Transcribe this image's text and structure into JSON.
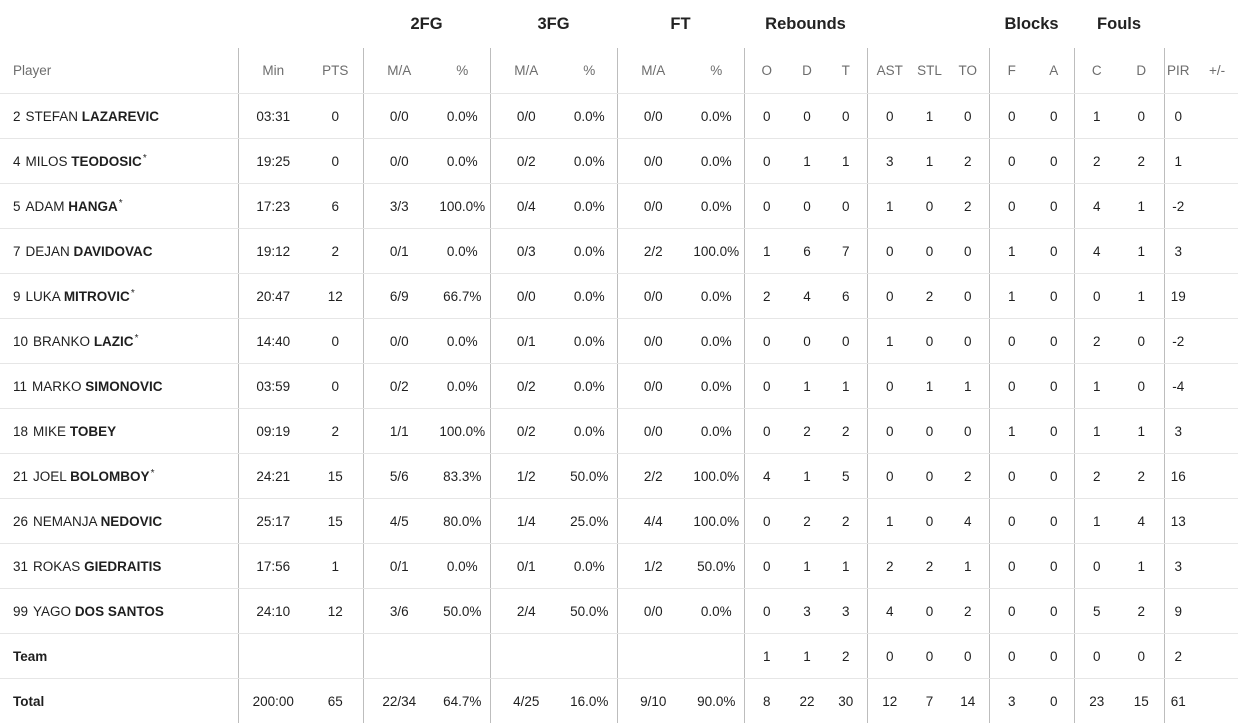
{
  "groups": {
    "fg2": "2FG",
    "fg3": "3FG",
    "ft": "FT",
    "rebounds": "Rebounds",
    "blocks": "Blocks",
    "fouls": "Fouls"
  },
  "headers": {
    "player": "Player",
    "min": "Min",
    "pts": "PTS",
    "fg2_ma": "M/A",
    "fg2_pct": "%",
    "fg3_ma": "M/A",
    "fg3_pct": "%",
    "ft_ma": "M/A",
    "ft_pct": "%",
    "reb_o": "O",
    "reb_d": "D",
    "reb_t": "T",
    "ast": "AST",
    "stl": "STL",
    "to": "TO",
    "blk_f": "F",
    "blk_a": "A",
    "foul_c": "C",
    "foul_d": "D",
    "pir": "PIR",
    "pm": "+/-"
  },
  "players": [
    {
      "number": "2",
      "first": "STEFAN",
      "last": "LAZAREVIC",
      "starter": "",
      "min": "03:31",
      "pts": "0",
      "fg2_ma": "0/0",
      "fg2_pct": "0.0%",
      "fg3_ma": "0/0",
      "fg3_pct": "0.0%",
      "ft_ma": "0/0",
      "ft_pct": "0.0%",
      "reb_o": "0",
      "reb_d": "0",
      "reb_t": "0",
      "ast": "0",
      "stl": "1",
      "to": "0",
      "blk_f": "0",
      "blk_a": "0",
      "foul_c": "1",
      "foul_d": "0",
      "pir": "0",
      "pm": ""
    },
    {
      "number": "4",
      "first": "MILOS",
      "last": "TEODOSIC",
      "starter": "*",
      "min": "19:25",
      "pts": "0",
      "fg2_ma": "0/0",
      "fg2_pct": "0.0%",
      "fg3_ma": "0/2",
      "fg3_pct": "0.0%",
      "ft_ma": "0/0",
      "ft_pct": "0.0%",
      "reb_o": "0",
      "reb_d": "1",
      "reb_t": "1",
      "ast": "3",
      "stl": "1",
      "to": "2",
      "blk_f": "0",
      "blk_a": "0",
      "foul_c": "2",
      "foul_d": "2",
      "pir": "1",
      "pm": ""
    },
    {
      "number": "5",
      "first": "ADAM",
      "last": "HANGA",
      "starter": "*",
      "min": "17:23",
      "pts": "6",
      "fg2_ma": "3/3",
      "fg2_pct": "100.0%",
      "fg3_ma": "0/4",
      "fg3_pct": "0.0%",
      "ft_ma": "0/0",
      "ft_pct": "0.0%",
      "reb_o": "0",
      "reb_d": "0",
      "reb_t": "0",
      "ast": "1",
      "stl": "0",
      "to": "2",
      "blk_f": "0",
      "blk_a": "0",
      "foul_c": "4",
      "foul_d": "1",
      "pir": "-2",
      "pm": ""
    },
    {
      "number": "7",
      "first": "DEJAN",
      "last": "DAVIDOVAC",
      "starter": "",
      "min": "19:12",
      "pts": "2",
      "fg2_ma": "0/1",
      "fg2_pct": "0.0%",
      "fg3_ma": "0/3",
      "fg3_pct": "0.0%",
      "ft_ma": "2/2",
      "ft_pct": "100.0%",
      "reb_o": "1",
      "reb_d": "6",
      "reb_t": "7",
      "ast": "0",
      "stl": "0",
      "to": "0",
      "blk_f": "1",
      "blk_a": "0",
      "foul_c": "4",
      "foul_d": "1",
      "pir": "3",
      "pm": ""
    },
    {
      "number": "9",
      "first": "LUKA",
      "last": "MITROVIC",
      "starter": "*",
      "min": "20:47",
      "pts": "12",
      "fg2_ma": "6/9",
      "fg2_pct": "66.7%",
      "fg3_ma": "0/0",
      "fg3_pct": "0.0%",
      "ft_ma": "0/0",
      "ft_pct": "0.0%",
      "reb_o": "2",
      "reb_d": "4",
      "reb_t": "6",
      "ast": "0",
      "stl": "2",
      "to": "0",
      "blk_f": "1",
      "blk_a": "0",
      "foul_c": "0",
      "foul_d": "1",
      "pir": "19",
      "pm": ""
    },
    {
      "number": "10",
      "first": "BRANKO",
      "last": "LAZIC",
      "starter": "*",
      "min": "14:40",
      "pts": "0",
      "fg2_ma": "0/0",
      "fg2_pct": "0.0%",
      "fg3_ma": "0/1",
      "fg3_pct": "0.0%",
      "ft_ma": "0/0",
      "ft_pct": "0.0%",
      "reb_o": "0",
      "reb_d": "0",
      "reb_t": "0",
      "ast": "1",
      "stl": "0",
      "to": "0",
      "blk_f": "0",
      "blk_a": "0",
      "foul_c": "2",
      "foul_d": "0",
      "pir": "-2",
      "pm": ""
    },
    {
      "number": "11",
      "first": "MARKO",
      "last": "SIMONOVIC",
      "starter": "",
      "min": "03:59",
      "pts": "0",
      "fg2_ma": "0/2",
      "fg2_pct": "0.0%",
      "fg3_ma": "0/2",
      "fg3_pct": "0.0%",
      "ft_ma": "0/0",
      "ft_pct": "0.0%",
      "reb_o": "0",
      "reb_d": "1",
      "reb_t": "1",
      "ast": "0",
      "stl": "1",
      "to": "1",
      "blk_f": "0",
      "blk_a": "0",
      "foul_c": "1",
      "foul_d": "0",
      "pir": "-4",
      "pm": ""
    },
    {
      "number": "18",
      "first": "MIKE",
      "last": "TOBEY",
      "starter": "",
      "min": "09:19",
      "pts": "2",
      "fg2_ma": "1/1",
      "fg2_pct": "100.0%",
      "fg3_ma": "0/2",
      "fg3_pct": "0.0%",
      "ft_ma": "0/0",
      "ft_pct": "0.0%",
      "reb_o": "0",
      "reb_d": "2",
      "reb_t": "2",
      "ast": "0",
      "stl": "0",
      "to": "0",
      "blk_f": "1",
      "blk_a": "0",
      "foul_c": "1",
      "foul_d": "1",
      "pir": "3",
      "pm": ""
    },
    {
      "number": "21",
      "first": "JOEL",
      "last": "BOLOMBOY",
      "starter": "*",
      "min": "24:21",
      "pts": "15",
      "fg2_ma": "5/6",
      "fg2_pct": "83.3%",
      "fg3_ma": "1/2",
      "fg3_pct": "50.0%",
      "ft_ma": "2/2",
      "ft_pct": "100.0%",
      "reb_o": "4",
      "reb_d": "1",
      "reb_t": "5",
      "ast": "0",
      "stl": "0",
      "to": "2",
      "blk_f": "0",
      "blk_a": "0",
      "foul_c": "2",
      "foul_d": "2",
      "pir": "16",
      "pm": ""
    },
    {
      "number": "26",
      "first": "NEMANJA",
      "last": "NEDOVIC",
      "starter": "",
      "min": "25:17",
      "pts": "15",
      "fg2_ma": "4/5",
      "fg2_pct": "80.0%",
      "fg3_ma": "1/4",
      "fg3_pct": "25.0%",
      "ft_ma": "4/4",
      "ft_pct": "100.0%",
      "reb_o": "0",
      "reb_d": "2",
      "reb_t": "2",
      "ast": "1",
      "stl": "0",
      "to": "4",
      "blk_f": "0",
      "blk_a": "0",
      "foul_c": "1",
      "foul_d": "4",
      "pir": "13",
      "pm": ""
    },
    {
      "number": "31",
      "first": "ROKAS",
      "last": "GIEDRAITIS",
      "starter": "",
      "min": "17:56",
      "pts": "1",
      "fg2_ma": "0/1",
      "fg2_pct": "0.0%",
      "fg3_ma": "0/1",
      "fg3_pct": "0.0%",
      "ft_ma": "1/2",
      "ft_pct": "50.0%",
      "reb_o": "0",
      "reb_d": "1",
      "reb_t": "1",
      "ast": "2",
      "stl": "2",
      "to": "1",
      "blk_f": "0",
      "blk_a": "0",
      "foul_c": "0",
      "foul_d": "1",
      "pir": "3",
      "pm": ""
    },
    {
      "number": "99",
      "first": "YAGO",
      "last": "DOS SANTOS",
      "starter": "",
      "min": "24:10",
      "pts": "12",
      "fg2_ma": "3/6",
      "fg2_pct": "50.0%",
      "fg3_ma": "2/4",
      "fg3_pct": "50.0%",
      "ft_ma": "0/0",
      "ft_pct": "0.0%",
      "reb_o": "0",
      "reb_d": "3",
      "reb_t": "3",
      "ast": "4",
      "stl": "0",
      "to": "2",
      "blk_f": "0",
      "blk_a": "0",
      "foul_c": "5",
      "foul_d": "2",
      "pir": "9",
      "pm": ""
    }
  ],
  "team": {
    "label": "Team",
    "min": "",
    "pts": "",
    "fg2_ma": "",
    "fg2_pct": "",
    "fg3_ma": "",
    "fg3_pct": "",
    "ft_ma": "",
    "ft_pct": "",
    "reb_o": "1",
    "reb_d": "1",
    "reb_t": "2",
    "ast": "0",
    "stl": "0",
    "to": "0",
    "blk_f": "0",
    "blk_a": "0",
    "foul_c": "0",
    "foul_d": "0",
    "pir": "2",
    "pm": ""
  },
  "total": {
    "label": "Total",
    "min": "200:00",
    "pts": "65",
    "fg2_ma": "22/34",
    "fg2_pct": "64.7%",
    "fg3_ma": "4/25",
    "fg3_pct": "16.0%",
    "ft_ma": "9/10",
    "ft_pct": "90.0%",
    "reb_o": "8",
    "reb_d": "22",
    "reb_t": "30",
    "ast": "12",
    "stl": "7",
    "to": "14",
    "blk_f": "3",
    "blk_a": "0",
    "foul_c": "23",
    "foul_d": "15",
    "pir": "61",
    "pm": ""
  }
}
